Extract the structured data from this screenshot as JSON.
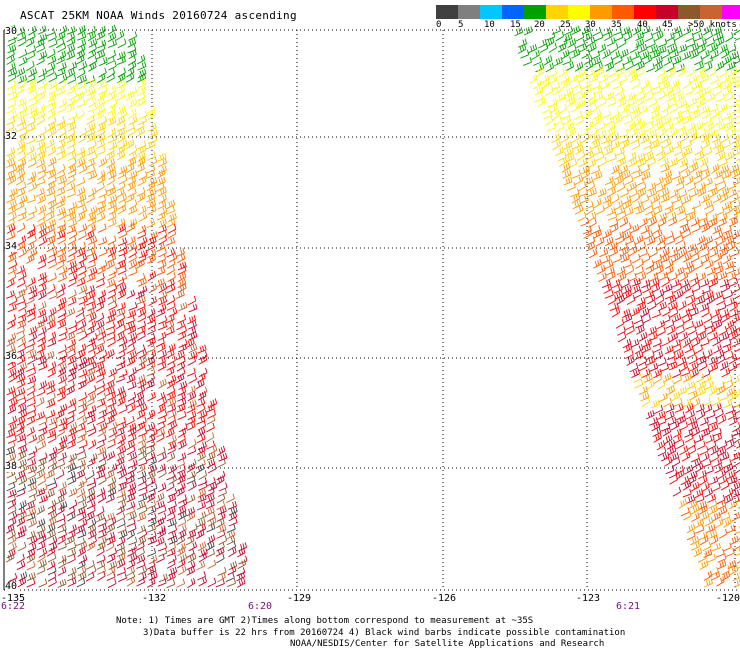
{
  "title": "ASCAT 25KM NOAA Winds 20160724 ascending",
  "legend": {
    "colors": [
      "#404040",
      "#7f7f7f",
      "#00c8ff",
      "#0064ff",
      "#00a000",
      "#ffd400",
      "#ffff00",
      "#ff9a00",
      "#ff5a00",
      "#ff0000",
      "#c80028",
      "#8b5a2b",
      "#c86432",
      "#ff00ff",
      "#8000c0",
      "#3c0070"
    ],
    "tick_labels": [
      "0",
      "5",
      "10",
      "15",
      "20",
      "25",
      "30",
      "35",
      "40",
      "45",
      ">50 knots"
    ]
  },
  "lat_labels": [
    "30",
    "32",
    "34",
    "36",
    "38",
    "40"
  ],
  "lon_labels": [
    "-135",
    "-132",
    "-129",
    "-126",
    "-123",
    "-120"
  ],
  "time_labels": [
    "6:22",
    "6:20",
    "6:21"
  ],
  "notes": [
    "Note: 1) Times are GMT 2)Times along bottom correspond to measurement at ~35S",
    "3)Data buffer is 22 hrs from 20160724 4) Black wind barbs indicate possible contamination",
    "NOAA/NESDIS/Center for Satellite Applications and Research"
  ]
}
